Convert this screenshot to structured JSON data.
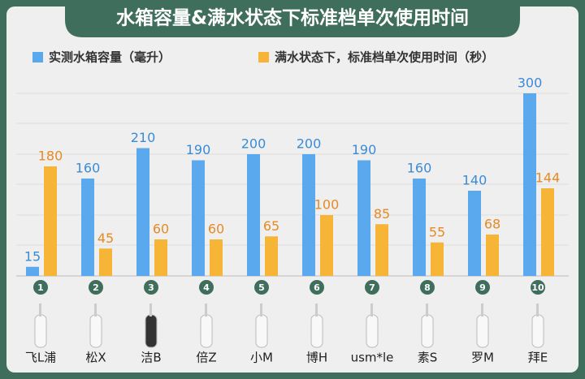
{
  "chart_data": {
    "type": "bar",
    "title": "水箱容量&满水状态下标准档单次使用时间",
    "categories": [
      "飞L浦",
      "松X",
      "洁B",
      "倍Z",
      "小M",
      "博H",
      "usm*le",
      "素S",
      "罗M",
      "拜E"
    ],
    "badges": [
      1,
      2,
      3,
      4,
      5,
      6,
      7,
      8,
      9,
      10
    ],
    "series": [
      {
        "name": "实测水箱容量（毫升）",
        "color": "#5aa9ef",
        "label_color": "#3a8bd6",
        "values": [
          15,
          160,
          210,
          190,
          200,
          200,
          190,
          160,
          140,
          300
        ]
      },
      {
        "name": "满水状态下，标准档单次使用时间（秒）",
        "color": "#f6b537",
        "label_color": "#e68a24",
        "values": [
          180,
          45,
          60,
          60,
          65,
          100,
          85,
          55,
          68,
          144
        ]
      }
    ],
    "ylim": [
      0,
      300
    ]
  }
}
